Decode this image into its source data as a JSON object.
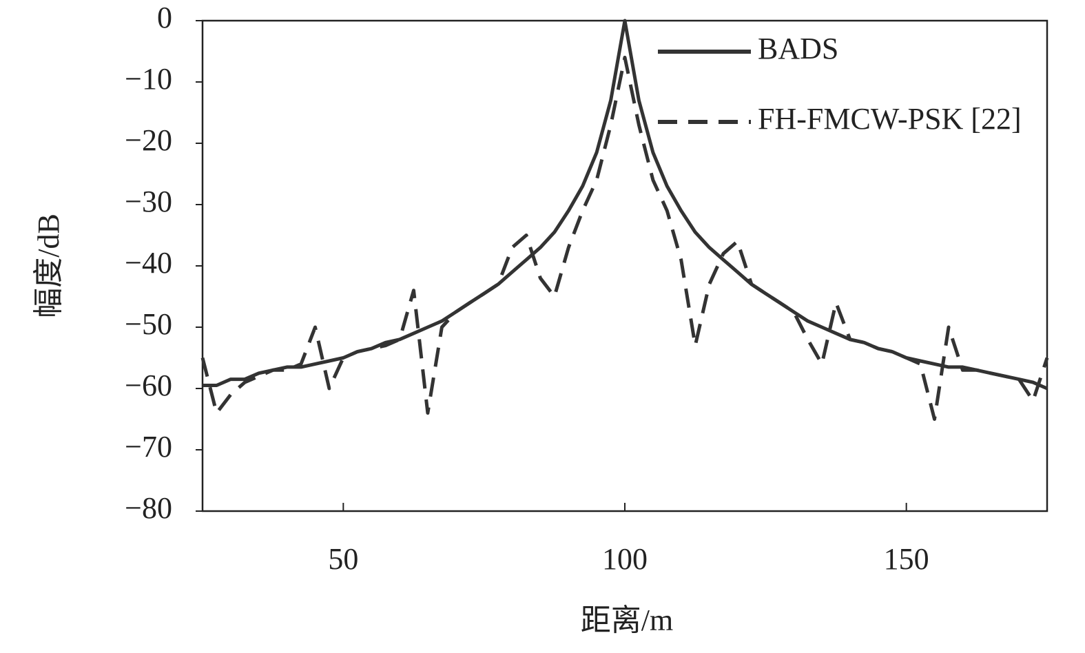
{
  "chart_data": {
    "type": "line",
    "xlabel": "距离/m",
    "ylabel": "幅度/dB",
    "x": [
      25,
      27.5,
      30,
      32.5,
      35,
      37.5,
      40,
      42.5,
      45,
      47.5,
      50,
      52.5,
      55,
      57.5,
      60,
      62.5,
      65,
      67.5,
      70,
      72.5,
      75,
      77.5,
      80,
      82.5,
      85,
      87.5,
      90,
      92.5,
      95,
      97.5,
      100,
      102.5,
      105,
      107.5,
      110,
      112.5,
      115,
      117.5,
      120,
      122.5,
      125,
      127.5,
      130,
      132.5,
      135,
      137.5,
      140,
      142.5,
      145,
      147.5,
      150,
      152.5,
      155,
      157.5,
      160,
      162.5,
      165,
      167.5,
      170,
      172.5,
      175
    ],
    "series": [
      {
        "name": "BADS",
        "color": "#333333",
        "dash": "solid",
        "values": [
          -59.5,
          -59.5,
          -58.5,
          -58.5,
          -57.5,
          -57,
          -56.5,
          -56.5,
          -56,
          -55.5,
          -55,
          -54,
          -53.5,
          -52.5,
          -52,
          -51,
          -50,
          -49,
          -47.5,
          -46,
          -44.5,
          -43,
          -41,
          -39,
          -37,
          -34.5,
          -31,
          -27,
          -21.5,
          -13,
          0,
          -13,
          -21.5,
          -27,
          -31,
          -34.5,
          -37,
          -39,
          -41,
          -43,
          -44.5,
          -46,
          -47.5,
          -49,
          -50,
          -51,
          -52,
          -52.5,
          -53.5,
          -54,
          -55,
          -55.5,
          -56,
          -56.5,
          -56.5,
          -57,
          -57.5,
          -58,
          -58.5,
          -59,
          -60
        ]
      },
      {
        "name": "FH-FMCW-PSK [22]",
        "color": "#333333",
        "dash": "dashed",
        "values": [
          -55,
          -64,
          -61,
          -59,
          -58,
          -57,
          -57,
          -56,
          -50,
          -60,
          -55,
          -54,
          -53.5,
          -53,
          -52,
          -44,
          -64,
          -50,
          -47.5,
          -46,
          -44.5,
          -43,
          -37,
          -35,
          -42,
          -45,
          -37,
          -31,
          -26,
          -17,
          -6,
          -17,
          -26,
          -31,
          -39,
          -53,
          -43,
          -38,
          -36,
          -43,
          -44.5,
          -46,
          -47.5,
          -52,
          -56,
          -46,
          -52,
          -52.5,
          -53.5,
          -54,
          -55,
          -56,
          -65,
          -50,
          -57,
          -57,
          -57.5,
          -58,
          -58.5,
          -62,
          -55
        ]
      }
    ],
    "xlim": [
      25,
      175
    ],
    "xticks": [
      50,
      100,
      150
    ],
    "ylim": [
      -80,
      0
    ],
    "yticks": [
      {
        "value": -80,
        "label": "−80"
      },
      {
        "value": -70,
        "label": "−70"
      },
      {
        "value": -60,
        "label": "−60"
      },
      {
        "value": -50,
        "label": "−50"
      },
      {
        "value": -40,
        "label": "−40"
      },
      {
        "value": -30,
        "label": "−30"
      },
      {
        "value": -20,
        "label": "−20"
      },
      {
        "value": -10,
        "label": "−10"
      },
      0
    ],
    "grid": false,
    "legend": "upper right"
  }
}
